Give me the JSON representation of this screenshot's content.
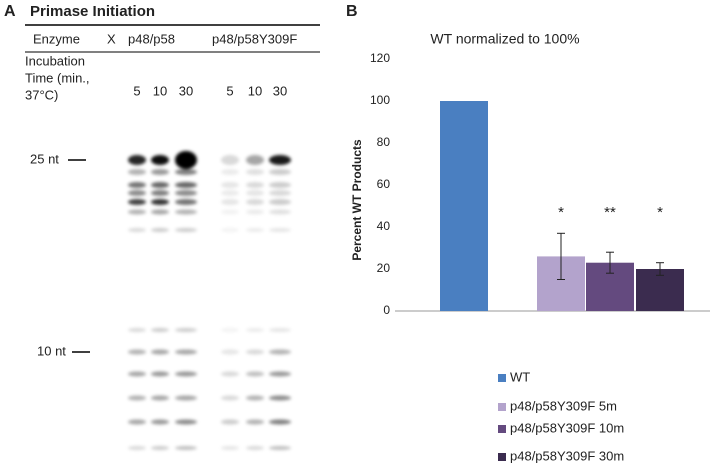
{
  "panel_a": {
    "panel_label": "A",
    "title": "Primase Initiation",
    "header": {
      "enzyme": "Enzyme",
      "control": "X",
      "wt": "p48/p58",
      "mutant": "p48/p58Y309F"
    },
    "incubation_lines": [
      "Incubation",
      "Time (min.,",
      "37°C)"
    ],
    "lanes": [
      "5",
      "10",
      "30",
      "5",
      "10",
      "30"
    ],
    "markers": [
      "25 nt",
      "10 nt"
    ]
  },
  "chart_data": {
    "type": "bar",
    "panel_label": "B",
    "title": "WT normalized to 100%",
    "y_label": "Percent WT Products",
    "categories": [
      "WT",
      "p48/p58Y309F 5m",
      "p48/p58Y309F 10m",
      "p48/p58Y309F 30m"
    ],
    "values": [
      100,
      26,
      23,
      20
    ],
    "errors": [
      null,
      11,
      5,
      3
    ],
    "annotations": [
      null,
      "*",
      "**",
      "*"
    ],
    "colors": [
      "#4a7fc1",
      "#b3a3cc",
      "#644a7f",
      "#3b2c4f"
    ],
    "ylim": [
      0,
      120
    ],
    "yticks": [
      0,
      20,
      40,
      60,
      80,
      100,
      120
    ],
    "grid": false
  }
}
